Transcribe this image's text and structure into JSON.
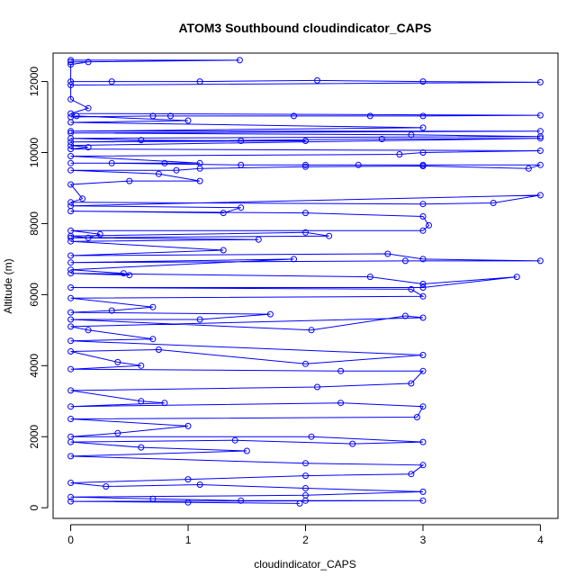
{
  "chart_data": {
    "type": "line",
    "title": "ATOM3 Southbound cloudindicator_CAPS",
    "xlabel": "cloudindicator_CAPS",
    "ylabel": "Altitude (m)",
    "xlim": [
      -0.15,
      4.15
    ],
    "ylim": [
      -300,
      12800
    ],
    "xticks": [
      0,
      1,
      2,
      3,
      4
    ],
    "yticks": [
      0,
      2000,
      4000,
      6000,
      8000,
      10000,
      12000
    ],
    "grid": false,
    "series_color": "#0000ff",
    "series": [
      {
        "points": [
          [
            0,
            12600
          ],
          [
            1.44,
            12600
          ],
          [
            0,
            12550
          ],
          [
            0.15,
            12550
          ],
          [
            0,
            12480
          ],
          [
            0,
            12000
          ],
          [
            0.35,
            12000
          ],
          [
            1.1,
            12000
          ],
          [
            2.1,
            12030
          ],
          [
            3.0,
            12000
          ],
          [
            4.0,
            11980
          ],
          [
            0,
            11900
          ],
          [
            0,
            11500
          ],
          [
            0.15,
            11250
          ],
          [
            0,
            11100
          ],
          [
            4.0,
            11050
          ],
          [
            3.0,
            11030
          ],
          [
            2.55,
            11030
          ],
          [
            1.9,
            11030
          ],
          [
            0.85,
            11030
          ],
          [
            0.7,
            11030
          ],
          [
            0,
            11000
          ],
          [
            0.05,
            11030
          ],
          [
            1.0,
            10900
          ],
          [
            0,
            10850
          ],
          [
            3.0,
            10700
          ],
          [
            0,
            10600
          ],
          [
            4.0,
            10600
          ],
          [
            0,
            10550
          ],
          [
            2.9,
            10500
          ],
          [
            4.0,
            10450
          ],
          [
            0,
            10400
          ],
          [
            0.6,
            10350
          ],
          [
            1.45,
            10330
          ],
          [
            2.0,
            10330
          ],
          [
            0,
            10300
          ],
          [
            2.65,
            10380
          ],
          [
            4.0,
            10400
          ],
          [
            0,
            10200
          ],
          [
            0.15,
            10150
          ],
          [
            0,
            10100
          ],
          [
            4.0,
            10050
          ],
          [
            3.0,
            10000
          ],
          [
            2.8,
            9950
          ],
          [
            0,
            9900
          ],
          [
            1.1,
            9700
          ],
          [
            0.8,
            9700
          ],
          [
            0,
            9700
          ],
          [
            0.35,
            9700
          ],
          [
            1.45,
            9650
          ],
          [
            2.0,
            9650
          ],
          [
            2.45,
            9650
          ],
          [
            3.0,
            9650
          ],
          [
            4.0,
            9650
          ],
          [
            3.9,
            9550
          ],
          [
            3.0,
            9620
          ],
          [
            2.0,
            9600
          ],
          [
            1.1,
            9550
          ],
          [
            0.9,
            9500
          ],
          [
            0,
            9500
          ],
          [
            0.75,
            9400
          ],
          [
            1.1,
            9200
          ],
          [
            0.5,
            9200
          ],
          [
            0,
            9100
          ],
          [
            0.1,
            8700
          ],
          [
            0,
            8600
          ],
          [
            3.0,
            8550
          ],
          [
            3.6,
            8580
          ],
          [
            4.0,
            8800
          ],
          [
            0,
            8500
          ],
          [
            1.45,
            8450
          ],
          [
            1.3,
            8300
          ],
          [
            0,
            8350
          ],
          [
            2.0,
            8300
          ],
          [
            3.0,
            8200
          ],
          [
            3.05,
            7950
          ],
          [
            3.0,
            7800
          ],
          [
            0,
            7800
          ],
          [
            0.25,
            7700
          ],
          [
            0.15,
            7600
          ],
          [
            0,
            7650
          ],
          [
            2.0,
            7750
          ],
          [
            2.2,
            7650
          ],
          [
            0,
            7600
          ],
          [
            1.6,
            7550
          ],
          [
            0,
            7500
          ],
          [
            1.3,
            7250
          ],
          [
            0,
            7100
          ],
          [
            2.7,
            7150
          ],
          [
            3.0,
            7000
          ],
          [
            4.0,
            6950
          ],
          [
            2.85,
            6950
          ],
          [
            0,
            6900
          ],
          [
            1.9,
            7000
          ],
          [
            0,
            6700
          ],
          [
            0.45,
            6600
          ],
          [
            0.5,
            6550
          ],
          [
            0,
            6600
          ],
          [
            2.55,
            6500
          ],
          [
            3.0,
            6300
          ],
          [
            3.8,
            6500
          ],
          [
            3.0,
            6200
          ],
          [
            0,
            6200
          ],
          [
            2.9,
            6150
          ],
          [
            3.0,
            5950
          ],
          [
            0,
            5900
          ],
          [
            0.7,
            5650
          ],
          [
            0.35,
            5550
          ],
          [
            0,
            5500
          ],
          [
            1.7,
            5450
          ],
          [
            1.1,
            5300
          ],
          [
            0,
            5300
          ],
          [
            2.05,
            5000
          ],
          [
            2.85,
            5400
          ],
          [
            3.0,
            5350
          ],
          [
            0,
            5100
          ],
          [
            0.15,
            5000
          ],
          [
            0.7,
            4750
          ],
          [
            0,
            4700
          ],
          [
            3.0,
            4300
          ],
          [
            2.0,
            4050
          ],
          [
            0.75,
            4450
          ],
          [
            0,
            4400
          ],
          [
            0.4,
            4100
          ],
          [
            0.6,
            4000
          ],
          [
            0,
            3900
          ],
          [
            2.3,
            3850
          ],
          [
            3.0,
            3850
          ],
          [
            2.9,
            3500
          ],
          [
            2.1,
            3400
          ],
          [
            0,
            3300
          ],
          [
            0.6,
            3000
          ],
          [
            0.8,
            2950
          ],
          [
            0,
            2850
          ],
          [
            2.3,
            2950
          ],
          [
            3.0,
            2850
          ],
          [
            2.95,
            2550
          ],
          [
            0,
            2500
          ],
          [
            1.0,
            2300
          ],
          [
            0.4,
            2100
          ],
          [
            0,
            2000
          ],
          [
            2.05,
            2000
          ],
          [
            3.0,
            1850
          ],
          [
            2.4,
            1800
          ],
          [
            1.4,
            1900
          ],
          [
            0,
            1850
          ],
          [
            0.6,
            1700
          ],
          [
            1.5,
            1600
          ],
          [
            0,
            1450
          ],
          [
            2.0,
            1250
          ],
          [
            3.0,
            1200
          ],
          [
            2.9,
            950
          ],
          [
            2.0,
            900
          ],
          [
            1.0,
            800
          ],
          [
            0,
            700
          ],
          [
            0.3,
            600
          ],
          [
            1.1,
            650
          ],
          [
            2.0,
            550
          ],
          [
            3.0,
            450
          ],
          [
            2.0,
            350
          ],
          [
            0,
            300
          ],
          [
            0.7,
            250
          ],
          [
            1.45,
            200
          ],
          [
            2.0,
            200
          ],
          [
            3.0,
            200
          ],
          [
            0,
            180
          ],
          [
            1.0,
            150
          ],
          [
            1.95,
            120
          ]
        ]
      }
    ]
  }
}
